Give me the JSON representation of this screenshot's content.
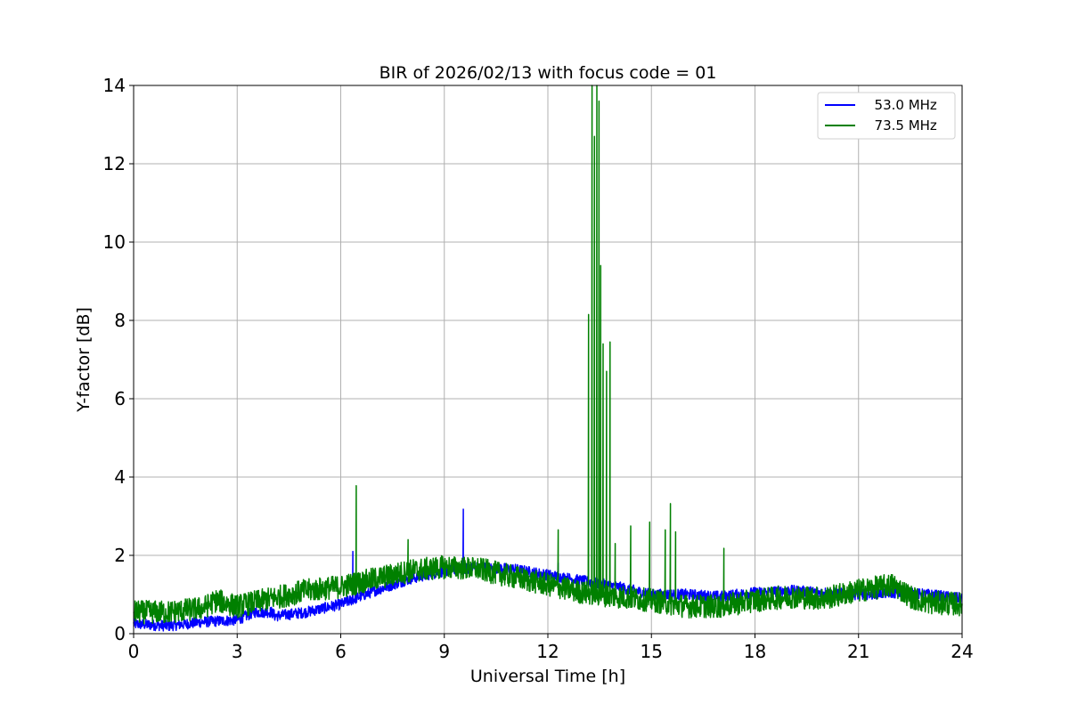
{
  "chart_data": {
    "type": "line",
    "title": "BIR of 2026/02/13 with focus code = 01",
    "xlabel": "Universal Time [h]",
    "ylabel": "Y-factor [dB]",
    "xlim": [
      0,
      24
    ],
    "ylim": [
      0,
      14
    ],
    "xticks": [
      0,
      3,
      6,
      9,
      12,
      15,
      18,
      21,
      24
    ],
    "yticks": [
      0,
      2,
      4,
      6,
      8,
      10,
      12,
      14
    ],
    "grid": true,
    "legend_position": "top-right",
    "series": [
      {
        "name": "  53.0 MHz",
        "color": "#0000ff",
        "noise": 0.14,
        "baseline": [
          [
            0,
            0.25
          ],
          [
            1,
            0.2
          ],
          [
            2,
            0.3
          ],
          [
            3,
            0.35
          ],
          [
            3.5,
            0.55
          ],
          [
            4,
            0.55
          ],
          [
            4.1,
            0.45
          ],
          [
            5,
            0.55
          ],
          [
            6,
            0.75
          ],
          [
            7,
            1.1
          ],
          [
            8,
            1.4
          ],
          [
            9,
            1.6
          ],
          [
            10,
            1.7
          ],
          [
            11,
            1.65
          ],
          [
            12,
            1.5
          ],
          [
            13,
            1.35
          ],
          [
            14,
            1.2
          ],
          [
            15,
            1.0
          ],
          [
            16,
            1.0
          ],
          [
            17,
            0.95
          ],
          [
            18,
            1.05
          ],
          [
            19,
            1.1
          ],
          [
            20,
            1.05
          ],
          [
            21,
            1.0
          ],
          [
            22,
            1.05
          ],
          [
            23,
            1.0
          ],
          [
            24,
            0.9
          ]
        ],
        "spikes": [
          [
            6.35,
            2.1
          ],
          [
            9.55,
            3.18
          ],
          [
            12.3,
            1.8
          ]
        ]
      },
      {
        "name": "  73.5 MHz",
        "color": "#008000",
        "noise": 0.3,
        "baseline": [
          [
            0,
            0.55
          ],
          [
            1,
            0.55
          ],
          [
            2,
            0.65
          ],
          [
            2.4,
            0.85
          ],
          [
            3,
            0.7
          ],
          [
            3.5,
            0.8
          ],
          [
            4,
            0.9
          ],
          [
            5,
            1.1
          ],
          [
            6,
            1.2
          ],
          [
            7,
            1.4
          ],
          [
            8,
            1.6
          ],
          [
            9,
            1.7
          ],
          [
            10,
            1.65
          ],
          [
            11,
            1.45
          ],
          [
            12,
            1.25
          ],
          [
            13,
            1.05
          ],
          [
            14,
            0.95
          ],
          [
            15,
            0.85
          ],
          [
            16,
            0.7
          ],
          [
            17,
            0.7
          ],
          [
            18,
            0.85
          ],
          [
            19,
            0.95
          ],
          [
            20,
            0.9
          ],
          [
            21,
            1.1
          ],
          [
            22,
            1.25
          ],
          [
            22.6,
            0.9
          ],
          [
            23,
            0.8
          ],
          [
            24,
            0.75
          ]
        ],
        "spikes": [
          [
            6.45,
            3.78
          ],
          [
            7.95,
            2.4
          ],
          [
            12.3,
            2.65
          ],
          [
            13.18,
            8.15
          ],
          [
            13.28,
            14.0
          ],
          [
            13.35,
            12.7
          ],
          [
            13.42,
            14.0
          ],
          [
            13.48,
            13.6
          ],
          [
            13.53,
            9.4
          ],
          [
            13.6,
            7.4
          ],
          [
            13.7,
            6.7
          ],
          [
            13.8,
            7.45
          ],
          [
            13.95,
            2.3
          ],
          [
            14.4,
            2.75
          ],
          [
            14.95,
            2.85
          ],
          [
            15.4,
            2.65
          ],
          [
            15.55,
            3.32
          ],
          [
            15.7,
            2.6
          ],
          [
            17.1,
            2.18
          ]
        ]
      }
    ]
  }
}
